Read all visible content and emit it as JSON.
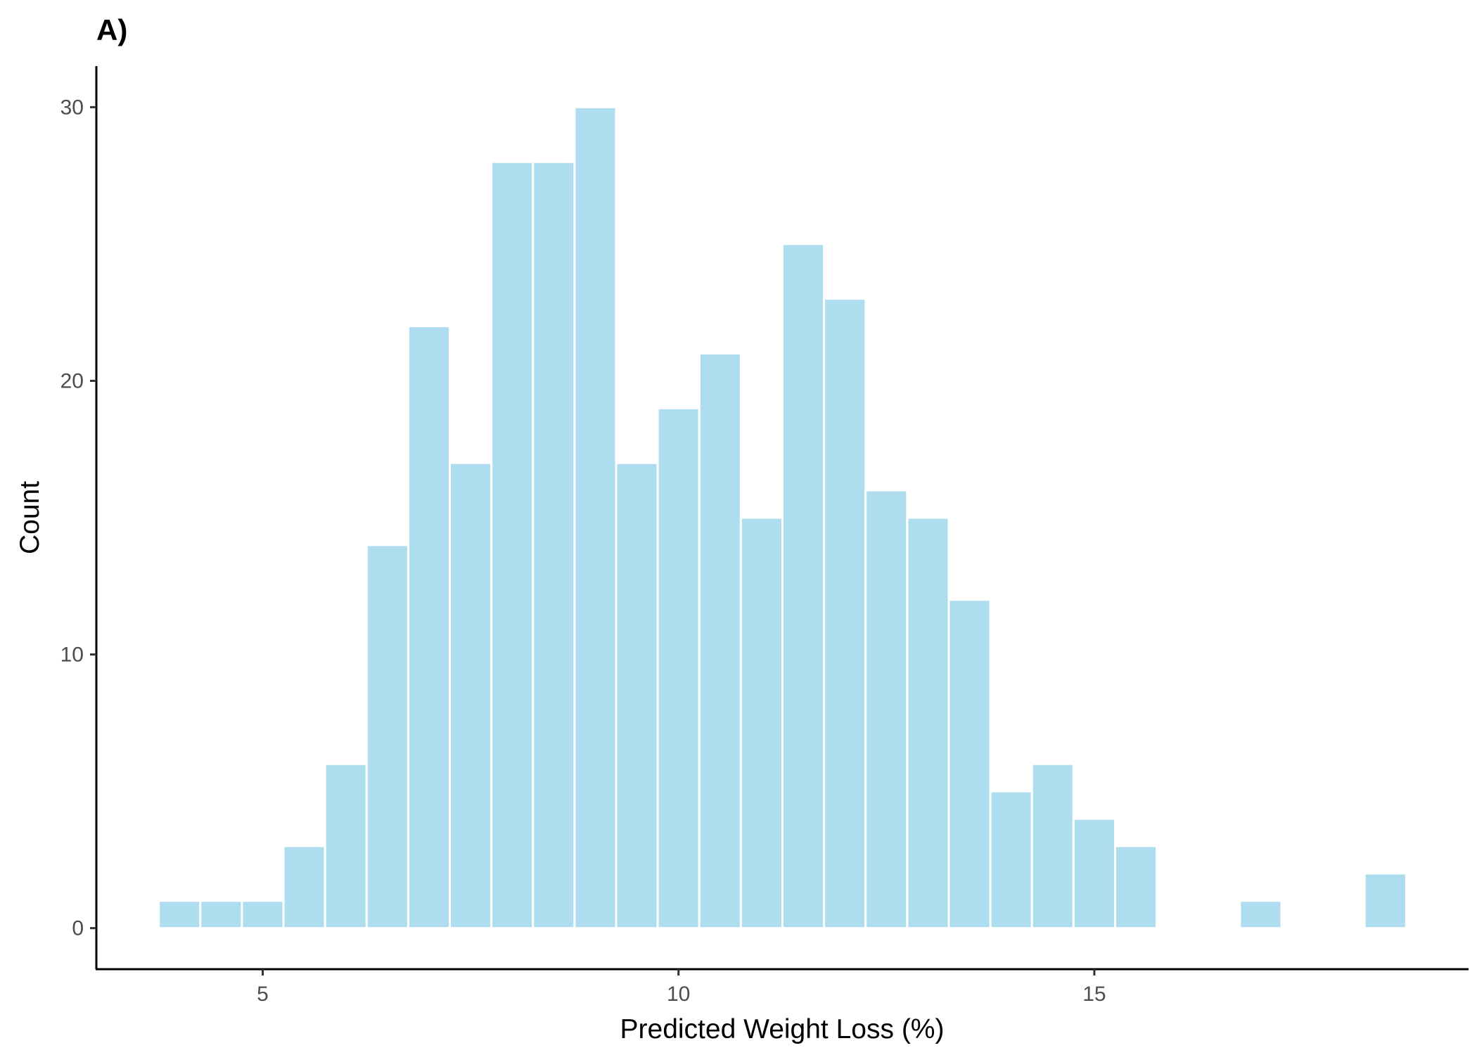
{
  "chart_data": {
    "type": "bar",
    "panel_label": "A)",
    "xlabel": "Predicted Weight Loss (%)",
    "ylabel": "Count",
    "xlim": [
      3,
      19.5
    ],
    "ylim": [
      -1.5,
      31.5
    ],
    "xticks": [
      5,
      10,
      15
    ],
    "yticks": [
      0,
      10,
      20,
      30
    ],
    "bin_width": 0.5,
    "grid": false,
    "legend": "none",
    "bins": [
      {
        "x": 4.0,
        "count": 1
      },
      {
        "x": 4.5,
        "count": 1
      },
      {
        "x": 5.0,
        "count": 1
      },
      {
        "x": 5.5,
        "count": 3
      },
      {
        "x": 6.0,
        "count": 6
      },
      {
        "x": 6.5,
        "count": 14
      },
      {
        "x": 7.0,
        "count": 22
      },
      {
        "x": 7.5,
        "count": 17
      },
      {
        "x": 8.0,
        "count": 28
      },
      {
        "x": 8.5,
        "count": 28
      },
      {
        "x": 9.0,
        "count": 30
      },
      {
        "x": 9.5,
        "count": 17
      },
      {
        "x": 10.0,
        "count": 19
      },
      {
        "x": 10.5,
        "count": 21
      },
      {
        "x": 11.0,
        "count": 15
      },
      {
        "x": 11.5,
        "count": 25
      },
      {
        "x": 12.0,
        "count": 23
      },
      {
        "x": 12.5,
        "count": 16
      },
      {
        "x": 13.0,
        "count": 15
      },
      {
        "x": 13.5,
        "count": 12
      },
      {
        "x": 14.0,
        "count": 5
      },
      {
        "x": 14.5,
        "count": 6
      },
      {
        "x": 15.0,
        "count": 4
      },
      {
        "x": 15.5,
        "count": 3
      },
      {
        "x": 17.0,
        "count": 1
      },
      {
        "x": 18.5,
        "count": 2
      }
    ],
    "colors": {
      "fill": "#ADDDEF",
      "outline": "#FFFFFF",
      "axis": "#000000"
    }
  }
}
